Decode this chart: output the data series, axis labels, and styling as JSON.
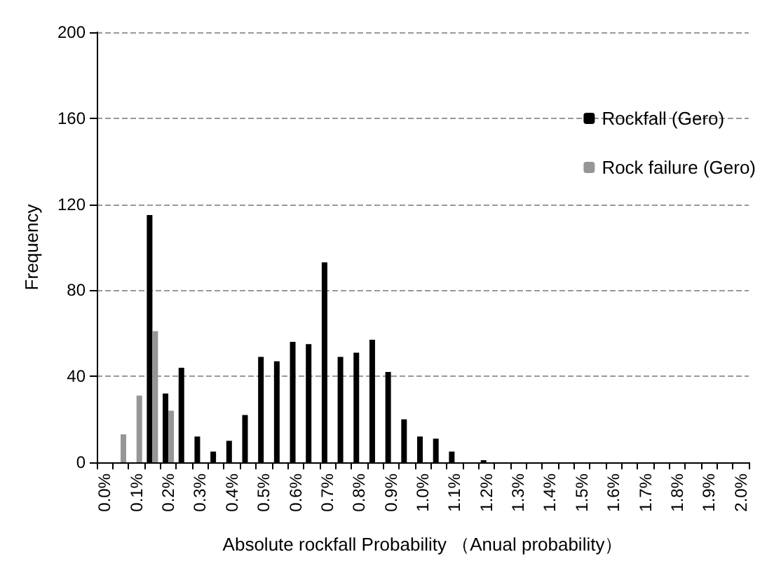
{
  "chart_data": {
    "type": "bar",
    "categories": [
      "0.0%",
      null,
      "0.1%",
      null,
      "0.2%",
      null,
      "0.3%",
      null,
      "0.4%",
      null,
      "0.5%",
      null,
      "0.6%",
      null,
      "0.7%",
      null,
      "0.8%",
      null,
      "0.9%",
      null,
      "1.0%",
      null,
      "1.1%",
      null,
      "1.2%",
      null,
      "1.3%",
      null,
      "1.4%",
      null,
      "1.5%",
      null,
      "1.6%",
      null,
      "1.7%",
      null,
      "1.8%",
      null,
      "1.9%",
      null,
      "2.0%"
    ],
    "series": [
      {
        "name": "Rockfall (Gero)",
        "color": "#000000",
        "values": [
          0,
          0,
          0,
          115,
          32,
          44,
          12,
          5,
          10,
          22,
          49,
          47,
          56,
          55,
          93,
          49,
          51,
          57,
          42,
          20,
          12,
          11,
          5,
          0,
          1,
          0,
          0,
          0,
          0,
          0,
          0,
          0,
          0,
          0,
          0,
          0,
          0,
          0,
          0,
          0,
          0
        ]
      },
      {
        "name": "Rock failure (Gero)",
        "color": "#969696",
        "values": [
          0,
          13,
          31,
          61,
          24,
          0,
          0,
          0,
          0,
          0,
          0,
          0,
          0,
          0,
          0,
          0,
          0,
          0,
          0,
          0,
          0,
          0,
          0,
          0,
          0,
          0,
          0,
          0,
          0,
          0,
          0,
          0,
          0,
          0,
          0,
          0,
          0,
          0,
          0,
          0,
          0
        ]
      }
    ],
    "xlabel": "Absolute rockfall Probability （Anual probability）",
    "ylabel": "Frequency",
    "ylim": [
      0,
      200
    ],
    "yticks": [
      0,
      40,
      80,
      120,
      160,
      200
    ],
    "grid": "y",
    "legend": "top right"
  }
}
